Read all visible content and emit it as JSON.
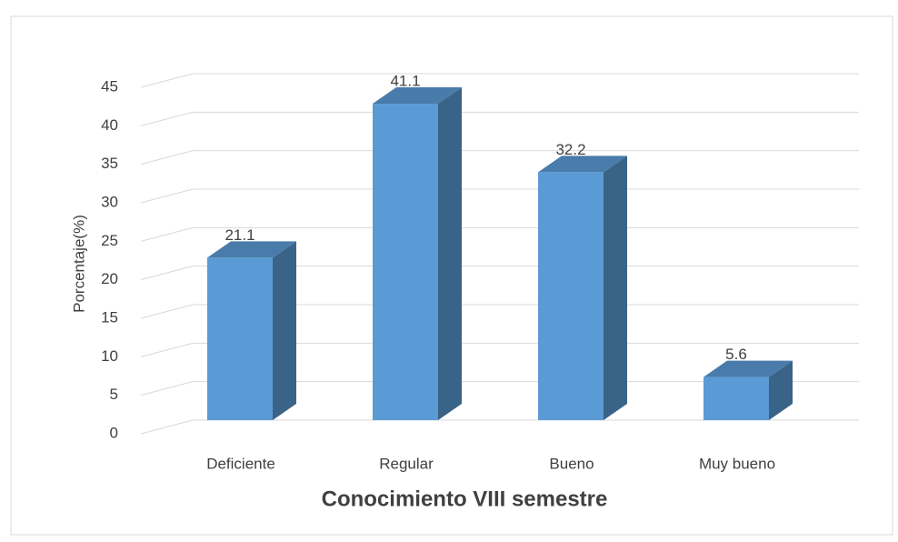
{
  "chart_data": {
    "type": "bar3d",
    "title": "Conocimiento VIII semestre",
    "y_label": "Porcentaje(%)",
    "categories": [
      "Deficiente",
      "Regular",
      "Bueno",
      "Muy bueno"
    ],
    "values": [
      21.1,
      41.1,
      32.2,
      5.6
    ],
    "color": "#5b9bd5",
    "ylim": [
      0,
      45
    ],
    "yticks": [
      0,
      5,
      10,
      15,
      20,
      25,
      30,
      35,
      40,
      45
    ],
    "grid": true
  }
}
